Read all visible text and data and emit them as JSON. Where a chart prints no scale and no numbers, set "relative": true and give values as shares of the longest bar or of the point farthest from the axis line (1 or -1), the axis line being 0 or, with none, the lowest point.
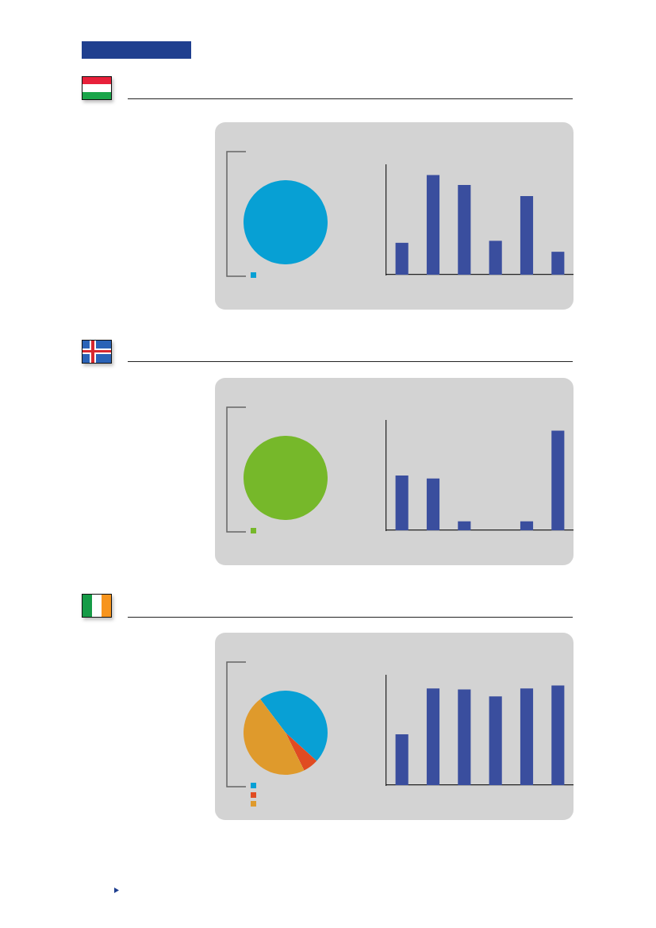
{
  "chart_data": [
    {
      "type": "pie",
      "categories": [
        null
      ],
      "values": [
        100
      ],
      "colors": [
        "#07a0d4"
      ]
    },
    {
      "type": "bar",
      "categories": [
        null,
        null,
        null,
        null,
        null,
        null
      ],
      "values": [
        0.32,
        1,
        0.9,
        0.34,
        0.79,
        0.23
      ],
      "color": "#3a4e9e",
      "relative": true,
      "tick_labels": false
    },
    {
      "type": "pie",
      "categories": [
        null
      ],
      "values": [
        100
      ],
      "colors": [
        "#76b82a"
      ]
    },
    {
      "type": "bar",
      "categories": [
        null,
        null,
        null,
        null,
        null,
        null
      ],
      "values": [
        0.55,
        0.52,
        0.09,
        0,
        0.09,
        1
      ],
      "color": "#3a4e9e",
      "relative": true,
      "tick_labels": false
    },
    {
      "type": "pie",
      "categories": [
        null,
        null,
        null
      ],
      "values": [
        47,
        6,
        47
      ],
      "colors": [
        "#08a0d5",
        "#e04b22",
        "#df9a2c"
      ]
    },
    {
      "type": "bar",
      "categories": [
        null,
        null,
        null,
        null,
        null,
        null
      ],
      "values": [
        0.51,
        0.97,
        0.96,
        0.89,
        0.97,
        1
      ],
      "color": "#3a4e9e",
      "relative": true,
      "tick_labels": false
    }
  ]
}
